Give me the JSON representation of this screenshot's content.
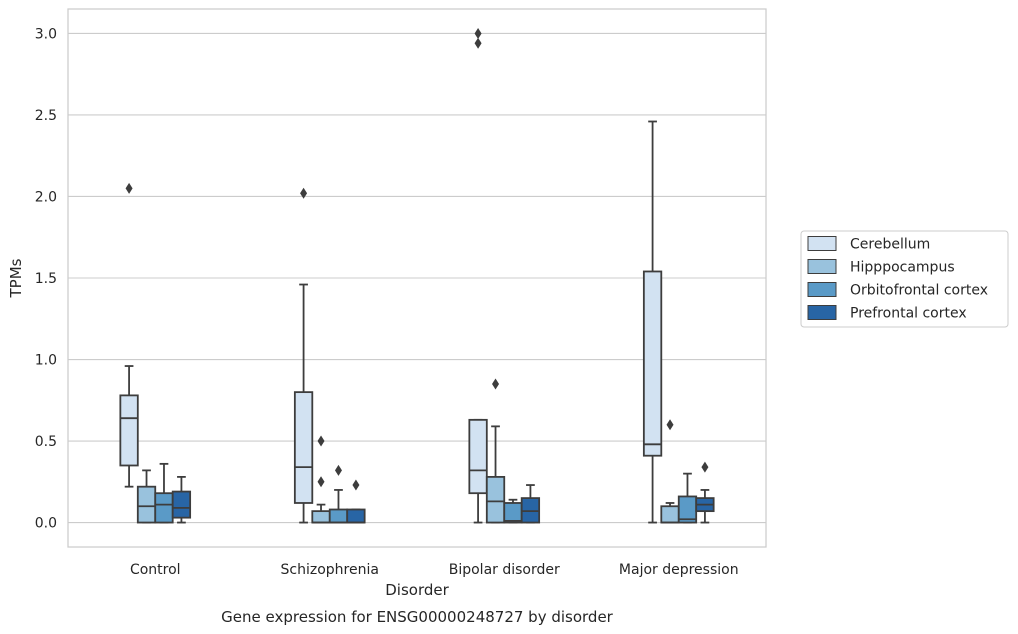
{
  "chart_data": {
    "type": "box",
    "caption": "Gene expression for ENSG00000248727 by disorder",
    "xlabel": "Disorder",
    "ylabel": "TPMs",
    "ylim": [
      -0.15,
      3.15
    ],
    "yticks": [
      "0.0",
      "0.5",
      "1.0",
      "1.5",
      "2.0",
      "2.5",
      "3.0"
    ],
    "grid": "horizontal",
    "legend_position": "right",
    "categories": [
      "Control",
      "Schizophrenia",
      "Bipolar disorder",
      "Major depression"
    ],
    "series": [
      {
        "name": "Cerebellum",
        "color": "#d2e2f2",
        "boxes": [
          {
            "whislo": 0.22,
            "q1": 0.35,
            "med": 0.64,
            "q3": 0.78,
            "whishi": 0.96,
            "fliers": [
              2.05
            ]
          },
          {
            "whislo": 0.0,
            "q1": 0.12,
            "med": 0.34,
            "q3": 0.8,
            "whishi": 1.46,
            "fliers": [
              2.02
            ]
          },
          {
            "whislo": 0.0,
            "q1": 0.18,
            "med": 0.32,
            "q3": 0.63,
            "whishi": 0.63,
            "fliers": [
              2.94,
              3.0
            ]
          },
          {
            "whislo": 0.0,
            "q1": 0.41,
            "med": 0.48,
            "q3": 1.54,
            "whishi": 2.46,
            "fliers": []
          }
        ]
      },
      {
        "name": "Hipppocampus",
        "color": "#99c2dd",
        "boxes": [
          {
            "whislo": 0.0,
            "q1": 0.0,
            "med": 0.1,
            "q3": 0.22,
            "whishi": 0.32,
            "fliers": []
          },
          {
            "whislo": 0.0,
            "q1": 0.0,
            "med": 0.0,
            "q3": 0.07,
            "whishi": 0.11,
            "fliers": [
              0.25,
              0.5
            ]
          },
          {
            "whislo": 0.0,
            "q1": 0.0,
            "med": 0.13,
            "q3": 0.28,
            "whishi": 0.59,
            "fliers": [
              0.85
            ]
          },
          {
            "whislo": 0.0,
            "q1": 0.0,
            "med": 0.0,
            "q3": 0.1,
            "whishi": 0.12,
            "fliers": [
              0.6
            ]
          }
        ]
      },
      {
        "name": "Orbitofrontal cortex",
        "color": "#5a9ac7",
        "boxes": [
          {
            "whislo": 0.0,
            "q1": 0.0,
            "med": 0.11,
            "q3": 0.18,
            "whishi": 0.36,
            "fliers": []
          },
          {
            "whislo": 0.0,
            "q1": 0.0,
            "med": 0.0,
            "q3": 0.08,
            "whishi": 0.2,
            "fliers": [
              0.32
            ]
          },
          {
            "whislo": 0.0,
            "q1": 0.0,
            "med": 0.01,
            "q3": 0.12,
            "whishi": 0.14,
            "fliers": []
          },
          {
            "whislo": 0.0,
            "q1": 0.0,
            "med": 0.02,
            "q3": 0.16,
            "whishi": 0.3,
            "fliers": []
          }
        ]
      },
      {
        "name": "Prefrontal cortex",
        "color": "#2865a5",
        "boxes": [
          {
            "whislo": 0.0,
            "q1": 0.03,
            "med": 0.09,
            "q3": 0.19,
            "whishi": 0.28,
            "fliers": []
          },
          {
            "whislo": 0.0,
            "q1": 0.0,
            "med": 0.0,
            "q3": 0.08,
            "whishi": 0.08,
            "fliers": [
              0.23
            ]
          },
          {
            "whislo": 0.0,
            "q1": 0.0,
            "med": 0.07,
            "q3": 0.15,
            "whishi": 0.23,
            "fliers": []
          },
          {
            "whislo": 0.0,
            "q1": 0.07,
            "med": 0.11,
            "q3": 0.15,
            "whishi": 0.2,
            "fliers": [
              0.34
            ]
          }
        ]
      }
    ]
  }
}
